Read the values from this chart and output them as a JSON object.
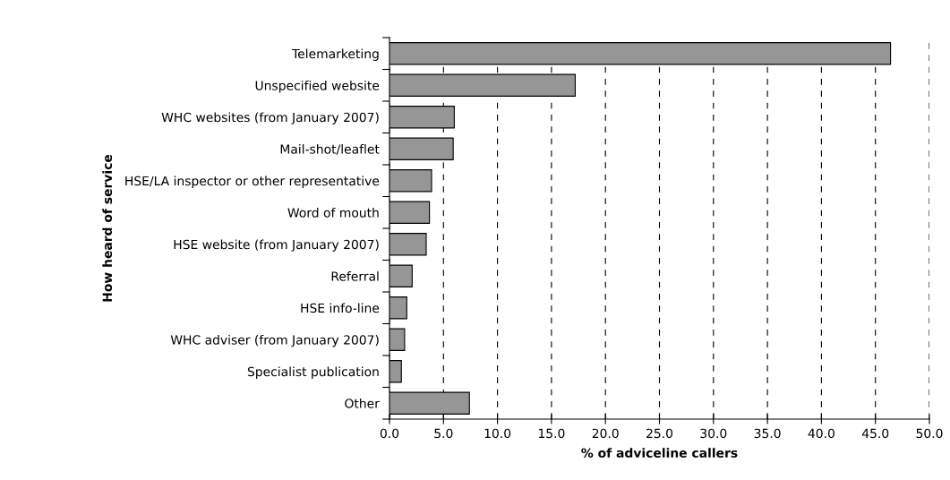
{
  "chart_data": {
    "type": "bar",
    "orientation": "horizontal",
    "xlabel": "% of adviceline callers",
    "ylabel": "How heard of service",
    "categories": [
      "Telemarketing",
      "Unspecified website",
      "WHC websites (from January 2007)",
      "Mail-shot/leaflet",
      "HSE/LA inspector or other representative",
      "Word of mouth",
      "HSE website (from January 2007)",
      "Referral",
      "HSE info-line",
      "WHC adviser (from January 2007)",
      "Specialist publication",
      "Other"
    ],
    "values": [
      46.4,
      17.2,
      6.0,
      5.9,
      3.9,
      3.7,
      3.4,
      2.1,
      1.6,
      1.4,
      1.1,
      7.4
    ],
    "color": "#969696",
    "xlim": [
      0,
      50
    ],
    "xticks": [
      {
        "value": 0,
        "label": "0.0"
      },
      {
        "value": 5,
        "label": "5.0"
      },
      {
        "value": 10,
        "label": "10.0"
      },
      {
        "value": 15,
        "label": "15.0"
      },
      {
        "value": 20,
        "label": "20.0"
      },
      {
        "value": 25,
        "label": "25.0"
      },
      {
        "value": 30,
        "label": "30.0"
      },
      {
        "value": 35,
        "label": "35.0"
      },
      {
        "value": 40,
        "label": "40.0"
      },
      {
        "value": 45,
        "label": "45.0"
      },
      {
        "value": 50,
        "label": "50.0"
      }
    ],
    "grid": "x"
  }
}
